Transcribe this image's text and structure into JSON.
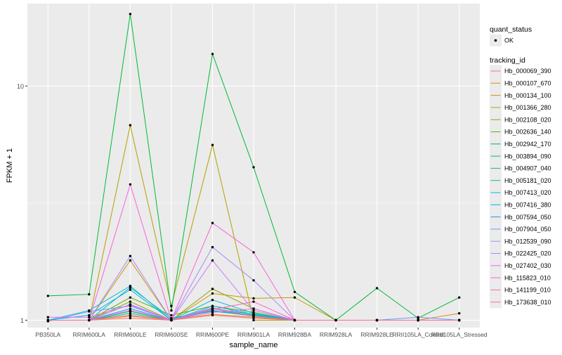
{
  "chart_data": {
    "type": "line",
    "title": "",
    "xlabel": "sample_name",
    "ylabel": "FPKM + 1",
    "y_scale": "log10",
    "grid": true,
    "background": "#ebebeb",
    "categories": [
      "PB350LA",
      "RRIM600LA",
      "RRIM600LE",
      "RRIM600SE",
      "RRIM600PE",
      "RRIM901LA",
      "RRIM928BA",
      "RRIM928LA",
      "RRIM928LE",
      "RRII105LA_Control",
      "RRII105LA_Stressed"
    ],
    "y_ticks": [
      1,
      10
    ],
    "y_tick_labels": [
      "1",
      "10"
    ],
    "ylim": [
      0.93,
      22.5
    ],
    "legend_placement": "right",
    "legend_shape": {
      "title": "quant_status",
      "entries": [
        "OK"
      ]
    },
    "legend_color_title": "tracking_id",
    "series": [
      {
        "name": "Hb_000069_390",
        "color": "#F8766D",
        "values": [
          1.0,
          1.0,
          1.02,
          1.0,
          1.05,
          1.02,
          1.0,
          1.0,
          1.0,
          1.0,
          1.0
        ]
      },
      {
        "name": "Hb_000107_670",
        "color": "#E7851E",
        "values": [
          1.0,
          1.0,
          1.04,
          1.0,
          1.06,
          1.03,
          1.0,
          1.0,
          1.0,
          1.0,
          1.07
        ]
      },
      {
        "name": "Hb_000134_100",
        "color": "#D09400",
        "values": [
          1.0,
          1.0,
          1.8,
          1.0,
          1.3,
          1.24,
          1.25,
          1.0,
          1.0,
          1.0,
          1.0
        ]
      },
      {
        "name": "Hb_001366_280",
        "color": "#B2A100",
        "values": [
          1.0,
          1.0,
          6.8,
          1.15,
          5.6,
          1.0,
          1.0,
          1.0,
          1.0,
          1.0,
          1.0
        ]
      },
      {
        "name": "Hb_002108_020",
        "color": "#8BAB00",
        "values": [
          1.0,
          1.0,
          1.2,
          1.0,
          1.36,
          1.12,
          1.0,
          1.0,
          1.0,
          1.0,
          1.0
        ]
      },
      {
        "name": "Hb_002636_140",
        "color": "#55B400",
        "values": [
          1.0,
          1.0,
          1.25,
          1.05,
          1.15,
          1.08,
          1.0,
          1.0,
          1.0,
          1.0,
          1.0
        ]
      },
      {
        "name": "Hb_002942_170",
        "color": "#00BA38",
        "values": [
          1.27,
          1.29,
          20.3,
          1.1,
          13.7,
          4.5,
          1.32,
          1.0,
          1.37,
          1.02,
          1.25
        ]
      },
      {
        "name": "Hb_003894_090",
        "color": "#00BE6C",
        "values": [
          1.0,
          1.0,
          1.07,
          1.0,
          1.1,
          1.05,
          1.0,
          1.0,
          1.0,
          1.0,
          1.0
        ]
      },
      {
        "name": "Hb_004907_040",
        "color": "#00C094",
        "values": [
          1.0,
          1.0,
          1.09,
          1.0,
          1.12,
          1.06,
          1.0,
          1.0,
          1.0,
          1.0,
          1.0
        ]
      },
      {
        "name": "Hb_005181_020",
        "color": "#00C0B5",
        "values": [
          1.0,
          1.0,
          1.38,
          1.02,
          1.09,
          1.05,
          1.0,
          1.0,
          1.0,
          1.0,
          1.0
        ]
      },
      {
        "name": "Hb_007413_020",
        "color": "#00BCD4",
        "values": [
          1.0,
          1.1,
          1.4,
          1.0,
          1.22,
          1.07,
          1.0,
          1.0,
          1.0,
          1.0,
          1.0
        ]
      },
      {
        "name": "Hb_007416_380",
        "color": "#00B2EE",
        "values": [
          1.0,
          1.05,
          1.35,
          1.0,
          1.15,
          1.06,
          1.0,
          1.0,
          1.0,
          1.0,
          1.0
        ]
      },
      {
        "name": "Hb_007594_050",
        "color": "#00A5FF",
        "values": [
          1.0,
          1.0,
          1.12,
          1.0,
          1.1,
          1.04,
          1.0,
          1.0,
          1.0,
          1.0,
          1.0
        ]
      },
      {
        "name": "Hb_007904_050",
        "color": "#619CFF",
        "values": [
          0.99,
          1.09,
          1.15,
          1.0,
          1.13,
          1.04,
          1.0,
          1.0,
          1.0,
          1.03,
          1.0
        ]
      },
      {
        "name": "Hb_012539_090",
        "color": "#A58AFF",
        "values": [
          1.0,
          1.0,
          1.88,
          1.0,
          2.05,
          1.48,
          1.0,
          1.0,
          1.0,
          1.0,
          1.0
        ]
      },
      {
        "name": "Hb_022425_020",
        "color": "#C77CFF",
        "values": [
          1.0,
          1.0,
          1.17,
          1.0,
          1.8,
          1.1,
          1.0,
          1.0,
          1.0,
          1.0,
          1.0
        ]
      },
      {
        "name": "Hb_027402_030",
        "color": "#E76BF3",
        "values": [
          1.03,
          1.03,
          1.16,
          1.0,
          1.08,
          1.12,
          1.0,
          1.0,
          1.0,
          1.0,
          1.0
        ]
      },
      {
        "name": "Hb_115823_010",
        "color": "#F962DD",
        "values": [
          1.0,
          1.0,
          3.8,
          1.0,
          2.6,
          1.95,
          1.0,
          1.0,
          1.0,
          1.0,
          1.0
        ]
      },
      {
        "name": "Hb_141199_010",
        "color": "#FF61C3",
        "values": [
          1.0,
          1.0,
          1.1,
          1.0,
          1.11,
          1.2,
          1.0,
          1.0,
          1.0,
          1.0,
          1.0
        ]
      },
      {
        "name": "Hb_173638_010",
        "color": "#FF6C91",
        "values": [
          1.0,
          1.0,
          1.05,
          1.0,
          1.12,
          1.04,
          1.0,
          1.0,
          1.0,
          1.0,
          1.0
        ]
      }
    ]
  }
}
